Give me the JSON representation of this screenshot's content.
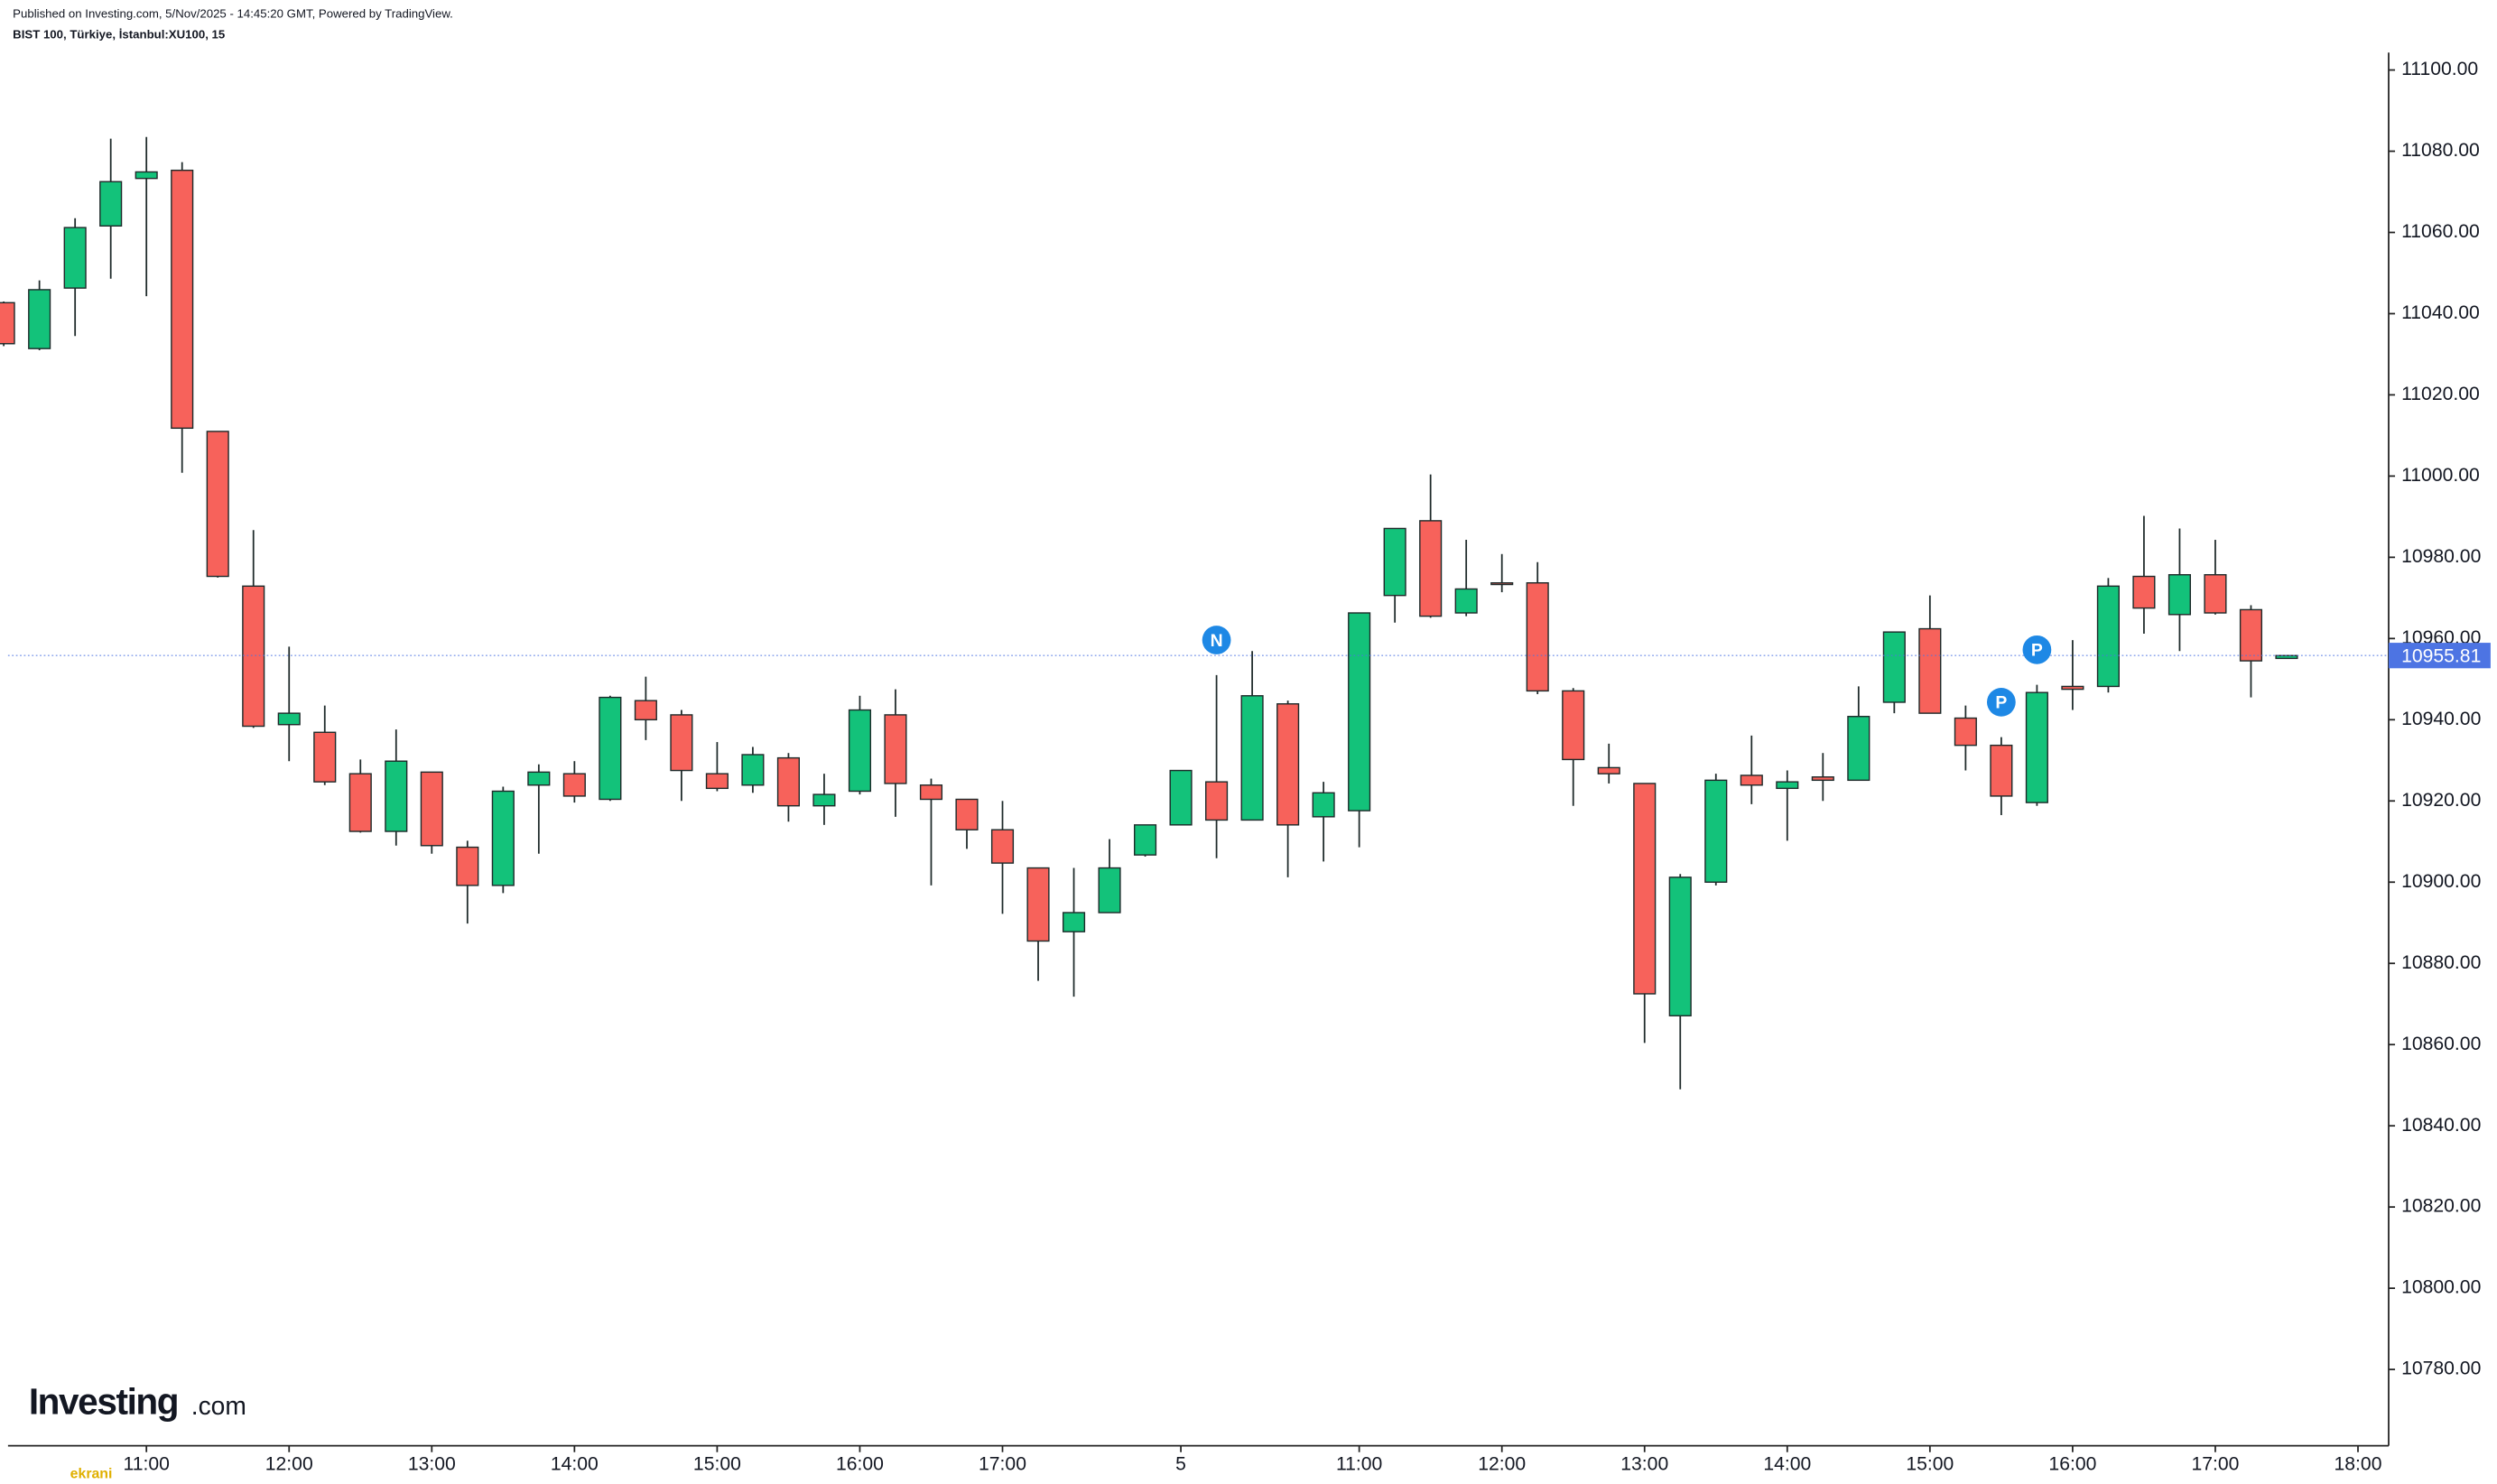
{
  "header": {
    "published": "Published on Investing.com, 5/Nov/2025 - 14:45:20 GMT, Powered by TradingView.",
    "symbol": "BIST 100, Türkiye, İstanbul:XU100, 15"
  },
  "logo": {
    "main": "Investing",
    "suffix": ".com",
    "badge": "ekrani"
  },
  "chart_data": {
    "type": "candlestick",
    "up_color": "#13c27a",
    "down_color": "#f7625b",
    "wick_color": "#1e2a2a",
    "x": [
      0,
      1,
      2,
      3,
      4,
      5,
      6,
      7,
      8,
      9,
      10,
      11,
      12,
      13,
      14,
      15,
      16,
      17,
      18,
      19,
      20,
      21,
      22,
      23,
      24,
      25,
      26,
      27,
      28,
      29,
      30,
      31,
      32,
      33,
      34,
      35,
      36,
      37,
      38,
      39,
      40,
      41,
      42,
      43,
      44,
      45,
      46,
      47,
      48,
      49,
      50,
      51,
      52,
      53,
      54,
      55,
      56,
      57,
      58,
      59,
      60,
      61,
      62,
      63,
      64
    ],
    "open": [
      11042.7,
      11031.4,
      11046.3,
      11061.6,
      11073.3,
      11075.3,
      11011,
      10972.9,
      10938.8,
      10936.9,
      10926.7,
      10912.5,
      10927.1,
      10908.6,
      10899.2,
      10923.9,
      10926.7,
      10920.4,
      10944.7,
      10941.2,
      10926.7,
      10923.9,
      10930.6,
      10918.8,
      10922.4,
      10941.2,
      10923.9,
      10920.4,
      10912.9,
      10903.5,
      10887.8,
      10892.5,
      10906.7,
      10914.1,
      10924.7,
      10915.3,
      10943.9,
      10916.1,
      10917.6,
      10970.6,
      10989,
      10966.3,
      10973.7,
      10973.7,
      10947.1,
      10928.2,
      10924.3,
      10867.1,
      10900,
      10926.3,
      10923.1,
      10925.9,
      10925.1,
      10944.3,
      10962.4,
      10940.4,
      10933.7,
      10919.6,
      10948.2,
      10948.2,
      10975.3,
      10965.9,
      10975.7,
      10967.1,
      10955.1
    ],
    "high": [
      11043,
      11048.2,
      11063.5,
      11083.1,
      11083.5,
      11077.3,
      11011,
      10986.7,
      10958,
      10943.5,
      10930.2,
      10937.6,
      10927.1,
      10910.2,
      10923.5,
      10929,
      10929.8,
      10945.9,
      10950.6,
      10942.4,
      10934.5,
      10933.3,
      10931.8,
      10926.7,
      10945.9,
      10947.5,
      10925.5,
      10920.4,
      10920,
      10903.5,
      10903.5,
      10910.6,
      10914.1,
      10927.5,
      10951,
      10956.9,
      10944.7,
      10924.7,
      10966.3,
      10987.1,
      11000.4,
      10984.3,
      10980.8,
      10978.8,
      10947.8,
      10934.1,
      10924.3,
      10902,
      10926.7,
      10936.1,
      10927.5,
      10931.8,
      10948.2,
      10961.6,
      10970.6,
      10943.5,
      10935.7,
      10948.6,
      10959.6,
      10974.9,
      10990.2,
      10987.1,
      10984.3,
      10968.2,
      10955.9
    ],
    "low": [
      11032,
      11031,
      11034.5,
      11048.6,
      11044.3,
      11000.8,
      10975,
      10938,
      10929.8,
      10923.9,
      10912.2,
      10909,
      10907,
      10889.8,
      10897.3,
      10907,
      10919.6,
      10920,
      10935,
      10920,
      10922.4,
      10922,
      10914.9,
      10914.1,
      10921.6,
      10916.1,
      10899.2,
      10908.2,
      10892.2,
      10875.7,
      10871.8,
      10892.5,
      10906.3,
      10914.1,
      10905.9,
      10915.3,
      10901.2,
      10905.1,
      10908.6,
      10963.9,
      10965.1,
      10965.5,
      10971.4,
      10946.3,
      10918.8,
      10924.3,
      10860.4,
      10849,
      10899.2,
      10919.2,
      10910.2,
      10920,
      10925.1,
      10941.6,
      10941.6,
      10927.5,
      10916.5,
      10918.8,
      10942.4,
      10946.7,
      10961.2,
      10956.9,
      10965.9,
      10945.5,
      10955
    ],
    "close": [
      11032.6,
      11045.9,
      11061.2,
      11072.5,
      11074.9,
      11011.8,
      10975.3,
      10938.4,
      10941.6,
      10924.7,
      10912.5,
      10929.8,
      10909,
      10899.2,
      10922.4,
      10927.1,
      10921.2,
      10945.5,
      10940,
      10927.5,
      10923.1,
      10931.4,
      10918.8,
      10921.6,
      10942.4,
      10924.3,
      10920.4,
      10912.9,
      10904.7,
      10885.5,
      10892.5,
      10903.5,
      10914.1,
      10927.5,
      10915.3,
      10945.9,
      10914.1,
      10922,
      10966.3,
      10987.1,
      10965.5,
      10972.2,
      10973.3,
      10947.1,
      10930.2,
      10926.7,
      10872.5,
      10901.2,
      10925.1,
      10923.9,
      10924.7,
      10925.1,
      10940.8,
      10961.6,
      10941.6,
      10933.7,
      10921.2,
      10946.7,
      10947.5,
      10972.9,
      10967.5,
      10975.7,
      10966.3,
      10954.5,
      10955.8
    ],
    "xlim": [
      0.12,
      66.86
    ],
    "ylim": [
      10761.2,
      11104.3
    ],
    "yticks": [
      {
        "value": 11100,
        "label": "11100.00"
      },
      {
        "value": 11080,
        "label": "11080.00"
      },
      {
        "value": 11060,
        "label": "11060.00"
      },
      {
        "value": 11040,
        "label": "11040.00"
      },
      {
        "value": 11020,
        "label": "11020.00"
      },
      {
        "value": 11000,
        "label": "11000.00"
      },
      {
        "value": 10980,
        "label": "10980.00"
      },
      {
        "value": 10960,
        "label": "10960.00"
      },
      {
        "value": 10940,
        "label": "10940.00"
      },
      {
        "value": 10920,
        "label": "10920.00"
      },
      {
        "value": 10900,
        "label": "10900.00"
      },
      {
        "value": 10880,
        "label": "10880.00"
      },
      {
        "value": 10860,
        "label": "10860.00"
      },
      {
        "value": 10840,
        "label": "10840.00"
      },
      {
        "value": 10820,
        "label": "10820.00"
      },
      {
        "value": 10800,
        "label": "10800.00"
      },
      {
        "value": 10780,
        "label": "10780.00"
      }
    ],
    "xticks": [
      {
        "value": 4,
        "label": "11:00"
      },
      {
        "value": 8,
        "label": "12:00"
      },
      {
        "value": 12,
        "label": "13:00"
      },
      {
        "value": 16,
        "label": "14:00"
      },
      {
        "value": 20,
        "label": "15:00"
      },
      {
        "value": 24,
        "label": "16:00"
      },
      {
        "value": 28,
        "label": "17:00"
      },
      {
        "value": 33,
        "label": "5"
      },
      {
        "value": 38,
        "label": "11:00"
      },
      {
        "value": 42,
        "label": "12:00"
      },
      {
        "value": 46,
        "label": "13:00"
      },
      {
        "value": 50,
        "label": "14:00"
      },
      {
        "value": 54,
        "label": "15:00"
      },
      {
        "value": 58,
        "label": "16:00"
      },
      {
        "value": 62,
        "label": "17:00"
      },
      {
        "value": 66,
        "label": "18:00"
      }
    ],
    "last_price": 10955.81,
    "last_price_color": "#4d74e3",
    "events": [
      {
        "x": 34,
        "label": "N"
      },
      {
        "x": 56,
        "label": "P"
      },
      {
        "x": 57,
        "label": "P"
      }
    ],
    "event_color": "#1e88e5",
    "grid": false
  }
}
